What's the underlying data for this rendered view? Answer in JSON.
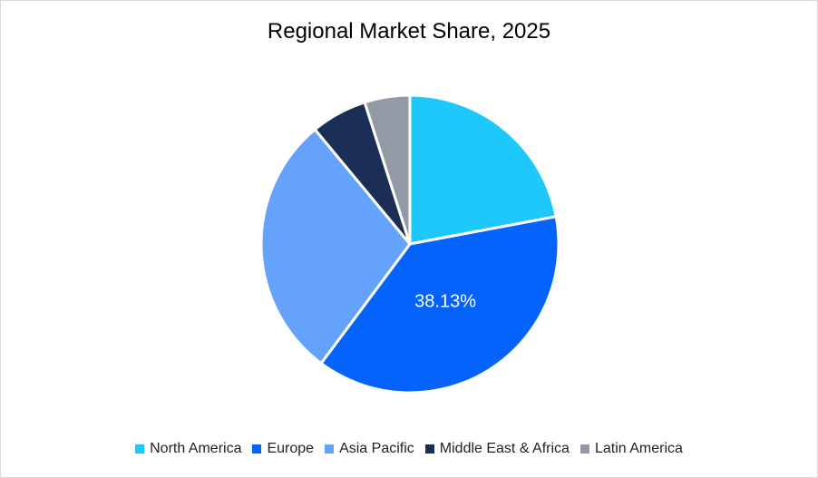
{
  "chart_data": {
    "type": "pie",
    "title": "Regional Market Share, 2025",
    "categories": [
      "North America",
      "Europe",
      "Asia Pacific",
      "Middle East & Africa",
      "Latin America"
    ],
    "values": [
      22.05,
      38.13,
      28.8,
      6.1,
      4.92
    ],
    "colors": [
      "#1ec8fb",
      "#0563fb",
      "#64a2fb",
      "#1b2e55",
      "#9399a6"
    ],
    "data_labels": {
      "Europe": "38.13%"
    },
    "legend_position": "bottom",
    "start_angle": "12 o'clock, clockwise"
  }
}
